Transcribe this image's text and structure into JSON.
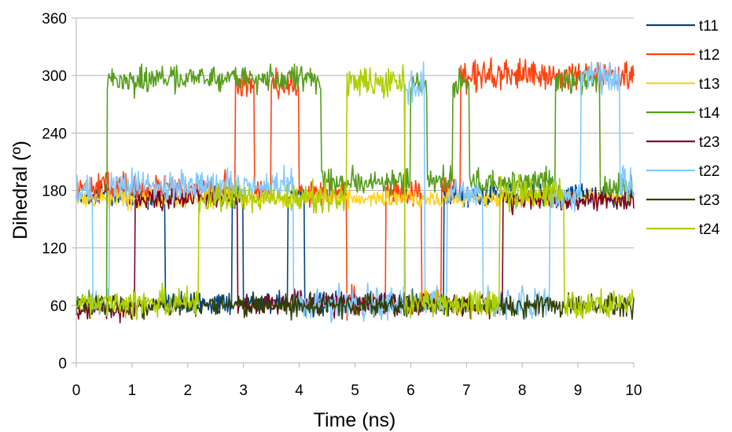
{
  "chart_data": {
    "type": "line",
    "title": "",
    "xlabel": "Time (ns)",
    "ylabel": "Dihedral (º)",
    "xlim": [
      0,
      10
    ],
    "ylim": [
      0,
      360
    ],
    "x_ticks": [
      "0",
      "1",
      "2",
      "3",
      "4",
      "5",
      "6",
      "7",
      "8",
      "9",
      "10"
    ],
    "y_ticks": [
      "0",
      "60",
      "120",
      "180",
      "240",
      "300",
      "360"
    ],
    "grid": "horizontal",
    "legend_position": "right",
    "series": [
      {
        "name": "t11",
        "color": "#004586",
        "noise": 8,
        "segments": [
          [
            0,
            1.6,
            175
          ],
          [
            1.6,
            2.8,
            62
          ],
          [
            2.8,
            3.0,
            175
          ],
          [
            3.0,
            3.8,
            64
          ],
          [
            3.8,
            4.1,
            175
          ],
          [
            4.1,
            6.6,
            62
          ],
          [
            6.6,
            10,
            175
          ]
        ]
      },
      {
        "name": "t12",
        "color": "#ff420e",
        "noise": 11,
        "segments": [
          [
            0,
            2.85,
            182
          ],
          [
            2.85,
            3.2,
            290
          ],
          [
            3.2,
            3.5,
            182
          ],
          [
            3.5,
            4.0,
            290
          ],
          [
            4.0,
            4.85,
            178
          ],
          [
            4.85,
            5.55,
            62
          ],
          [
            5.55,
            6.2,
            175
          ],
          [
            6.2,
            6.55,
            65
          ],
          [
            6.55,
            6.9,
            178
          ],
          [
            6.9,
            10,
            300
          ]
        ]
      },
      {
        "name": "t13",
        "color": "#ffd320",
        "noise": 7,
        "segments": [
          [
            0,
            10,
            172
          ]
        ]
      },
      {
        "name": "t14",
        "color": "#579d1c",
        "noise": 10,
        "segments": [
          [
            0,
            0.55,
            62
          ],
          [
            0.55,
            4.4,
            296
          ],
          [
            4.4,
            6.0,
            188
          ],
          [
            6.0,
            6.3,
            290
          ],
          [
            6.3,
            6.75,
            188
          ],
          [
            6.75,
            7.05,
            292
          ],
          [
            7.05,
            8.6,
            188
          ],
          [
            8.6,
            9.4,
            295
          ],
          [
            9.4,
            10,
            180
          ]
        ]
      },
      {
        "name": "t23",
        "color": "#7e0021",
        "noise": 8,
        "segments": [
          [
            0,
            1.05,
            55
          ],
          [
            1.05,
            2.9,
            172
          ],
          [
            2.9,
            6.4,
            62
          ],
          [
            6.4,
            7.65,
            60
          ],
          [
            7.65,
            10,
            170
          ]
        ]
      },
      {
        "name": "t22",
        "color": "#83caff",
        "noise": 12,
        "segments": [
          [
            0,
            0.3,
            178
          ],
          [
            0.3,
            0.6,
            62
          ],
          [
            0.6,
            3.9,
            185
          ],
          [
            3.9,
            5.9,
            62
          ],
          [
            5.9,
            6.25,
            290
          ],
          [
            6.25,
            6.65,
            65
          ],
          [
            6.65,
            7.3,
            178
          ],
          [
            7.3,
            8.5,
            62
          ],
          [
            8.5,
            9.05,
            175
          ],
          [
            9.05,
            9.75,
            300
          ],
          [
            9.75,
            10,
            190
          ]
        ]
      },
      {
        "name": "t23",
        "color": "#314004",
        "noise": 8,
        "segments": [
          [
            0,
            10,
            60
          ]
        ]
      },
      {
        "name": "t24",
        "color": "#aecf00",
        "noise": 11,
        "segments": [
          [
            0,
            2.2,
            62
          ],
          [
            2.2,
            4.85,
            172
          ],
          [
            4.85,
            5.9,
            295
          ],
          [
            5.9,
            7.6,
            62
          ],
          [
            7.6,
            8.75,
            178
          ],
          [
            8.75,
            10,
            62
          ]
        ]
      }
    ]
  }
}
